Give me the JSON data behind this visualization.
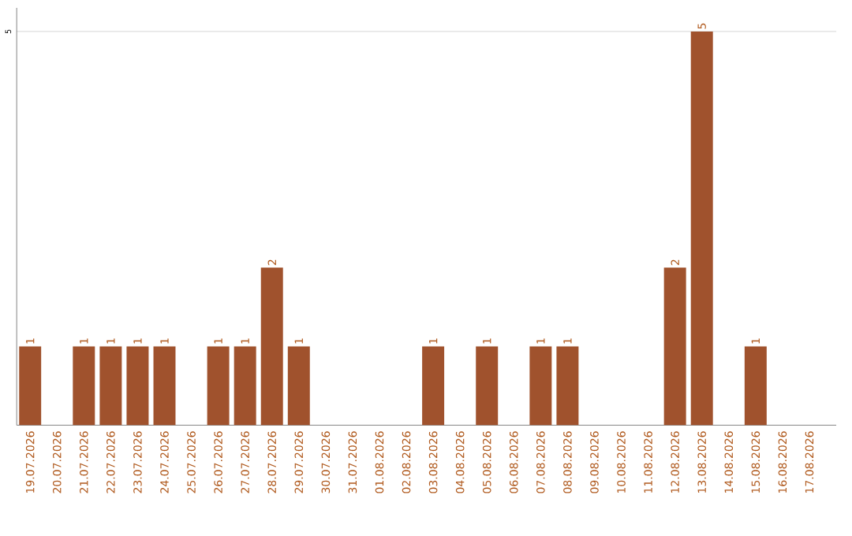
{
  "chart_data": {
    "type": "bar",
    "categories": [
      "19.07.2026",
      "20.07.2026",
      "21.07.2026",
      "22.07.2026",
      "23.07.2026",
      "24.07.2026",
      "25.07.2026",
      "26.07.2026",
      "27.07.2026",
      "28.07.2026",
      "29.07.2026",
      "30.07.2026",
      "31.07.2026",
      "01.08.2026",
      "02.08.2026",
      "03.08.2026",
      "04.08.2026",
      "05.08.2026",
      "06.08.2026",
      "07.08.2026",
      "08.08.2026",
      "09.08.2026",
      "10.08.2026",
      "11.08.2026",
      "12.08.2026",
      "13.08.2026",
      "14.08.2026",
      "15.08.2026",
      "16.08.2026",
      "17.08.2026"
    ],
    "values": [
      1,
      null,
      1,
      1,
      1,
      1,
      null,
      1,
      1,
      2,
      1,
      null,
      null,
      null,
      null,
      1,
      null,
      1,
      null,
      1,
      1,
      null,
      null,
      null,
      2,
      5,
      null,
      1,
      null,
      null
    ],
    "color": "#a0522d",
    "ylim": [
      0,
      5.3
    ],
    "yticks": [
      5
    ],
    "grid": "y",
    "data_labels": true
  }
}
